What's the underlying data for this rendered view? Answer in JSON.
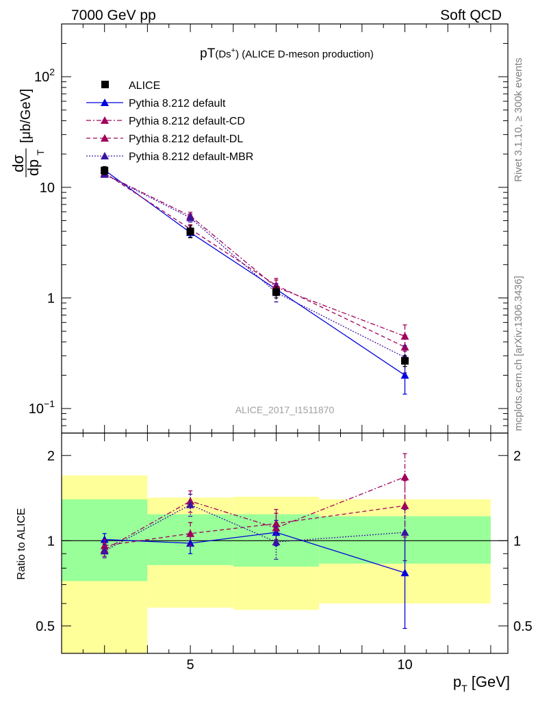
{
  "header": {
    "left": "7000 GeV pp",
    "right": "Soft QCD"
  },
  "side": {
    "top": "Rivet 3.1.10, ≥ 300k events",
    "bottom": "mcplots.cern.ch [arXiv:1306.3436]"
  },
  "colors": {
    "alice": "#000000",
    "default": "#0000dd",
    "cd": "#a0005a",
    "dl": "#a0005a",
    "mbr": "#3a14a0",
    "band_yellow": "#ffff99",
    "band_green": "#99ff99"
  },
  "chart_data": [
    {
      "type": "line",
      "title": "pT(Ds⁺) (ALICE D-meson production)",
      "title_main": "pT",
      "title_sub": "(Ds",
      "title_sup": "+",
      "title_rest": ") (ALICE D-meson production)",
      "ylabel": "dσ/dp_T [μb/GeV]",
      "ylabel_num": "dσ",
      "ylabel_den": "dp",
      "ylabel_den_sub": "T",
      "ylabel_unit": "[μb/GeV]",
      "watermark": "ALICE_2017_I1511870",
      "y_scale": "log",
      "xlim": [
        2,
        12.4
      ],
      "ylim": [
        0.06,
        300
      ],
      "yticks": [
        {
          "label": "10",
          "sup": "2",
          "value": 100
        },
        {
          "label": "10",
          "sup": "",
          "value": 10
        },
        {
          "label": "1",
          "sup": "",
          "value": 1
        },
        {
          "label": "10",
          "sup": "−1",
          "value": 0.1
        }
      ],
      "legend_position": "top-left",
      "series": [
        {
          "name": "ALICE",
          "marker": "square",
          "x": [
            3,
            5,
            7,
            10
          ],
          "y": [
            14.2,
            4.0,
            1.13,
            0.27
          ],
          "yerr": [
            1.2,
            0.5,
            0.13,
            0.03
          ]
        },
        {
          "name": "Pythia 8.212 default",
          "style": "solid",
          "x": [
            3,
            5,
            7,
            10
          ],
          "y": [
            14.3,
            3.9,
            1.2,
            0.2
          ],
          "yerr": [
            0.5,
            0.35,
            0.15,
            0.065
          ]
        },
        {
          "name": "Pythia 8.212 default-CD",
          "style": "dashdot",
          "x": [
            3,
            5,
            7,
            10
          ],
          "y": [
            13.2,
            5.5,
            1.25,
            0.45
          ],
          "yerr": [
            0.5,
            0.45,
            0.2,
            0.12
          ]
        },
        {
          "name": "Pythia 8.212 default-DL",
          "style": "dashed",
          "x": [
            3,
            5,
            7,
            10
          ],
          "y": [
            13.5,
            4.2,
            1.3,
            0.36
          ],
          "yerr": [
            0.5,
            0.4,
            0.2,
            0.1
          ]
        },
        {
          "name": "Pythia 8.212 default-MBR",
          "style": "dotted",
          "x": [
            3,
            5,
            7,
            10
          ],
          "y": [
            13.1,
            5.3,
            1.12,
            0.29
          ],
          "yerr": [
            0.5,
            0.45,
            0.2,
            0.08
          ]
        }
      ]
    },
    {
      "type": "line",
      "xlabel": "p_T [GeV]",
      "xlabel_main": "p",
      "xlabel_sub": "T",
      "xlabel_unit": "[GeV]",
      "ylabel": "Ratio to ALICE",
      "y_scale": "log",
      "xlim": [
        2,
        12.4
      ],
      "ylim": [
        0.4,
        2.4
      ],
      "xticks": [
        5,
        10
      ],
      "yticks": [
        0.5,
        1,
        2
      ],
      "reference_line": 1,
      "bands": [
        {
          "x0": 2.0,
          "x1": 4.0,
          "green": [
            0.72,
            1.4
          ],
          "yellow": [
            0.4,
            1.7
          ]
        },
        {
          "x0": 4.0,
          "x1": 6.0,
          "green": [
            0.82,
            1.24
          ],
          "yellow": [
            0.58,
            1.42
          ]
        },
        {
          "x0": 6.0,
          "x1": 8.0,
          "green": [
            0.81,
            1.24
          ],
          "yellow": [
            0.57,
            1.43
          ]
        },
        {
          "x0": 8.0,
          "x1": 12.0,
          "green": [
            0.83,
            1.22
          ],
          "yellow": [
            0.6,
            1.4
          ]
        }
      ],
      "series": [
        {
          "name": "Pythia 8.212 default",
          "style": "solid",
          "x": [
            3,
            5,
            7,
            10
          ],
          "y": [
            1.01,
            0.98,
            1.07,
            0.77
          ],
          "yerr": [
            0.05,
            0.08,
            0.11,
            0.28
          ]
        },
        {
          "name": "Pythia 8.212 default-CD",
          "style": "dashdot",
          "x": [
            3,
            5,
            7,
            10
          ],
          "y": [
            0.93,
            1.38,
            1.11,
            1.68
          ],
          "yerr": [
            0.05,
            0.12,
            0.14,
            0.35
          ]
        },
        {
          "name": "Pythia 8.212 default-DL",
          "style": "dashed",
          "x": [
            3,
            5,
            7,
            10
          ],
          "y": [
            0.96,
            1.06,
            1.15,
            1.33
          ],
          "yerr": [
            0.05,
            0.1,
            0.14,
            0.3
          ]
        },
        {
          "name": "Pythia 8.212 default-MBR",
          "style": "dotted",
          "x": [
            3,
            5,
            7,
            10
          ],
          "y": [
            0.92,
            1.34,
            0.99,
            1.07
          ],
          "yerr": [
            0.05,
            0.12,
            0.13,
            0.22
          ]
        }
      ]
    }
  ]
}
